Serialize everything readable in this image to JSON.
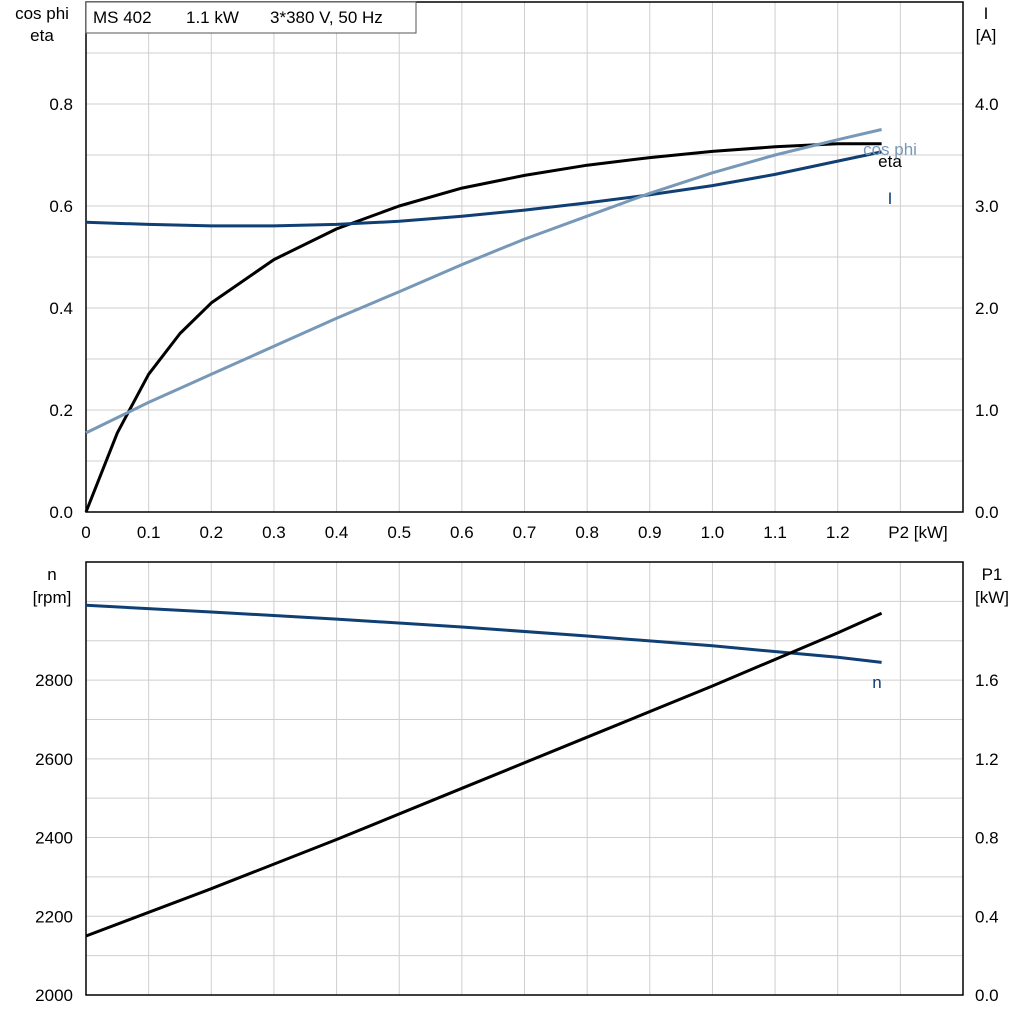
{
  "header": {
    "model": "MS 402",
    "power": "1.1 kW",
    "supply": "3*380 V, 50 Hz"
  },
  "colors": {
    "eta": "#000000",
    "current": "#0f3f73",
    "cos_phi": "#7898b8",
    "speed": "#0f3f73",
    "p1": "#000000",
    "grid": "#cfcfcf"
  },
  "chart_data": [
    {
      "type": "line",
      "left_axis_label_lines": [
        "cos phi",
        "eta"
      ],
      "right_axis_label_lines": [
        "I",
        "[A]"
      ],
      "xlabel": "P2 [kW]",
      "xlim": [
        0,
        1.4
      ],
      "x_ticks": [
        "0",
        "0.1",
        "0.2",
        "0.3",
        "0.4",
        "0.5",
        "0.6",
        "0.7",
        "0.8",
        "0.9",
        "1.0",
        "1.1",
        "1.2"
      ],
      "ylim_left": [
        0,
        1.0
      ],
      "y_ticks_left": [
        "0.0",
        "0.2",
        "0.4",
        "0.6",
        "0.8"
      ],
      "ylim_right": [
        0,
        5.0
      ],
      "y_ticks_right": [
        "0.0",
        "1.0",
        "2.0",
        "3.0",
        "4.0"
      ],
      "grid": true,
      "series": [
        {
          "name": "eta",
          "axis": "left",
          "x": [
            0,
            0.05,
            0.1,
            0.15,
            0.2,
            0.3,
            0.4,
            0.5,
            0.6,
            0.7,
            0.8,
            0.9,
            1.0,
            1.1,
            1.2,
            1.27
          ],
          "y": [
            0,
            0.155,
            0.27,
            0.35,
            0.41,
            0.495,
            0.555,
            0.6,
            0.635,
            0.66,
            0.68,
            0.695,
            0.707,
            0.716,
            0.722,
            0.722
          ]
        },
        {
          "name": "I",
          "axis": "right",
          "x": [
            0,
            0.1,
            0.2,
            0.3,
            0.4,
            0.5,
            0.6,
            0.7,
            0.8,
            0.9,
            1.0,
            1.1,
            1.2,
            1.27
          ],
          "y": [
            2.84,
            2.82,
            2.805,
            2.805,
            2.82,
            2.85,
            2.9,
            2.96,
            3.03,
            3.11,
            3.2,
            3.31,
            3.44,
            3.53
          ]
        },
        {
          "name": "cos phi",
          "axis": "left",
          "x": [
            0,
            0.1,
            0.2,
            0.3,
            0.4,
            0.5,
            0.6,
            0.7,
            0.8,
            0.9,
            1.0,
            1.1,
            1.2,
            1.27
          ],
          "y": [
            0.155,
            0.215,
            0.27,
            0.325,
            0.38,
            0.432,
            0.485,
            0.535,
            0.58,
            0.625,
            0.665,
            0.7,
            0.73,
            0.75
          ]
        }
      ]
    },
    {
      "type": "line",
      "left_axis_label_lines": [
        "n",
        "[rpm]"
      ],
      "right_axis_label_lines": [
        "P1",
        "[kW]"
      ],
      "xlim": [
        0,
        1.4
      ],
      "ylim_left": [
        2000,
        3100
      ],
      "y_ticks_left": [
        "2000",
        "2200",
        "2400",
        "2600",
        "2800"
      ],
      "ylim_right": [
        0,
        2.2
      ],
      "y_ticks_right": [
        "0.0",
        "0.4",
        "0.8",
        "1.2",
        "1.6"
      ],
      "grid": true,
      "series": [
        {
          "name": "n",
          "axis": "left",
          "x": [
            0,
            0.2,
            0.4,
            0.6,
            0.8,
            1.0,
            1.2,
            1.27
          ],
          "y": [
            2990,
            2973,
            2955,
            2935,
            2912,
            2887,
            2858,
            2845
          ]
        },
        {
          "name": "",
          "axis": "right",
          "x": [
            0,
            0.2,
            0.4,
            0.6,
            0.8,
            1.0,
            1.2,
            1.27
          ],
          "y": [
            0.3,
            0.54,
            0.79,
            1.05,
            1.31,
            1.57,
            1.84,
            1.94
          ]
        }
      ]
    }
  ]
}
